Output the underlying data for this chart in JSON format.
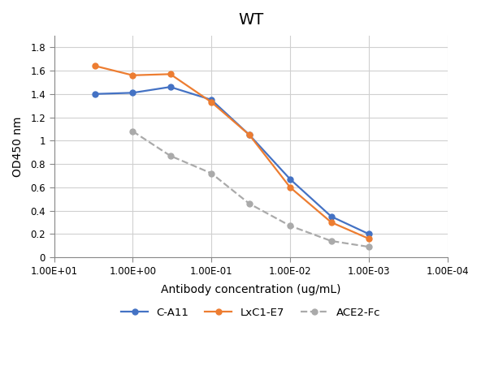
{
  "title": "WT",
  "xlabel": "Antibody concentration (ug/mL)",
  "ylabel": "OD450 nm",
  "series": [
    {
      "label": "C-A11",
      "color": "#4472C4",
      "linestyle": "-",
      "marker": "o",
      "x": [
        3.0,
        1.0,
        0.333,
        0.1,
        0.033,
        0.01,
        0.003,
        0.001
      ],
      "y": [
        1.4,
        1.41,
        1.46,
        1.35,
        1.05,
        0.67,
        0.35,
        0.2
      ]
    },
    {
      "label": "LxC1-E7",
      "color": "#ED7D31",
      "linestyle": "-",
      "marker": "o",
      "x": [
        3.0,
        1.0,
        0.333,
        0.1,
        0.033,
        0.01,
        0.003,
        0.001
      ],
      "y": [
        1.64,
        1.56,
        1.57,
        1.33,
        1.05,
        0.6,
        0.3,
        0.16
      ]
    },
    {
      "label": "ACE2-Fc",
      "color": "#AAAAAA",
      "linestyle": "--",
      "marker": "o",
      "x": [
        1.0,
        0.333,
        0.1,
        0.033,
        0.01,
        0.003,
        0.001
      ],
      "y": [
        1.08,
        0.87,
        0.72,
        0.46,
        0.27,
        0.14,
        0.09
      ]
    }
  ],
  "xlim_left": 10,
  "xlim_right": 0.0001,
  "ylim": [
    0,
    1.9
  ],
  "yticks": [
    0,
    0.2,
    0.4,
    0.6,
    0.8,
    1.0,
    1.2,
    1.4,
    1.6,
    1.8
  ],
  "xtick_vals": [
    10,
    1,
    0.1,
    0.01,
    0.001,
    0.0001
  ],
  "xtick_labels": [
    "1.00E+01",
    "1.00E+00",
    "1.00E-01",
    "1.00E-02",
    "1.00E-03",
    "1.00E-04"
  ],
  "background_color": "#FFFFFF",
  "grid_color": "#D0D0D0",
  "title_fontsize": 14,
  "label_fontsize": 10,
  "tick_fontsize": 8.5
}
